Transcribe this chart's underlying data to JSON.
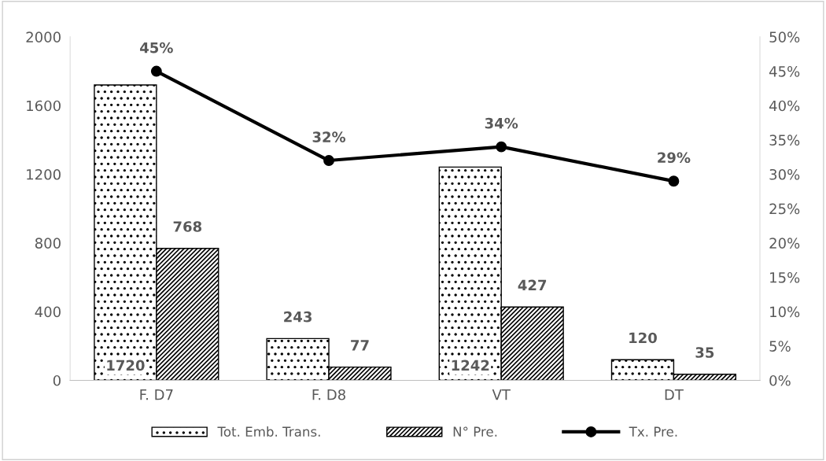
{
  "chart_data": {
    "type": "bar",
    "categories": [
      "F. D7",
      "F. D8",
      "VT",
      "DT"
    ],
    "series": [
      {
        "name": "Tot. Emb. Trans.",
        "color": "#000000",
        "values": [
          1720,
          243,
          1242,
          120
        ]
      },
      {
        "name": "N° Pre.",
        "color": "#000000",
        "values": [
          768,
          77,
          427,
          35
        ]
      },
      {
        "name": "Tx. Pre.",
        "type": "line",
        "axis": "y2",
        "color": "#000000",
        "marker": "circle",
        "values": [
          45,
          32,
          34,
          29
        ],
        "value_labels": [
          "45%",
          "32%",
          "34%",
          "29%"
        ]
      }
    ],
    "data_labels": true,
    "ylim": [
      0,
      2000
    ],
    "yticks": [
      0,
      400,
      800,
      1200,
      1600,
      2000
    ],
    "y2lim": [
      0,
      50
    ],
    "y2ticks": [
      {
        "value": 0,
        "label": "0%"
      },
      {
        "value": 5,
        "label": "5%"
      },
      {
        "value": 10,
        "label": "10%"
      },
      {
        "value": 15,
        "label": "15%"
      },
      {
        "value": 20,
        "label": "20%"
      },
      {
        "value": 25,
        "label": "25%"
      },
      {
        "value": 30,
        "label": "30%"
      },
      {
        "value": 35,
        "label": "35%"
      },
      {
        "value": 40,
        "label": "40%"
      },
      {
        "value": 45,
        "label": "45%"
      },
      {
        "value": 50,
        "label": "50%"
      }
    ],
    "grid": false,
    "legend": "bottom"
  }
}
